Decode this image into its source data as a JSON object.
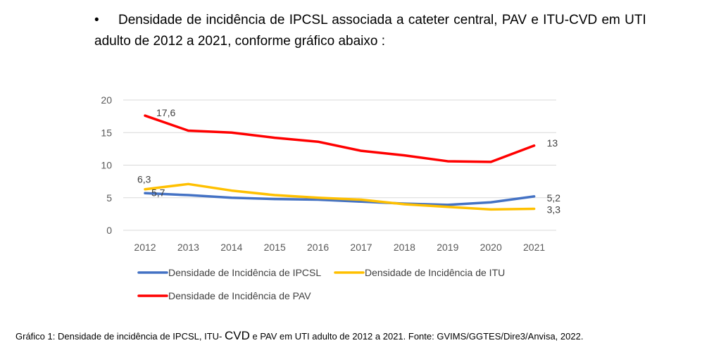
{
  "intro": {
    "line1": "Densidade de incidência de IPCSL associada a cateter central, PAV e ITU-CVD  em UTI",
    "line2": "adulto de 2012 a 2021, conforme gráfico abaixo :"
  },
  "chart_data": {
    "type": "line",
    "title": "",
    "xlabel": "",
    "ylabel": "",
    "categories": [
      "2012",
      "2013",
      "2014",
      "2015",
      "2016",
      "2017",
      "2018",
      "2019",
      "2020",
      "2021"
    ],
    "ylim": [
      0,
      20
    ],
    "yticks": [
      "0",
      "5",
      "10",
      "15",
      "20"
    ],
    "grid": true,
    "legend_position": "bottom",
    "series": [
      {
        "name": "Densidade de Incidência de IPCSL",
        "color": "#4472c4",
        "values": [
          5.7,
          5.4,
          5.0,
          4.8,
          4.7,
          4.4,
          4.1,
          3.9,
          4.3,
          5.2
        ],
        "labels": [
          {
            "index": 0,
            "text": "5,7"
          },
          {
            "index": 9,
            "text": "5,2"
          }
        ]
      },
      {
        "name": "Densidade de Incidência de ITU",
        "color": "#ffc000",
        "values": [
          6.3,
          7.1,
          6.1,
          5.4,
          5.0,
          4.7,
          4.0,
          3.6,
          3.2,
          3.3
        ],
        "labels": [
          {
            "index": 0,
            "text": "6,3"
          },
          {
            "index": 9,
            "text": "3,3"
          }
        ]
      },
      {
        "name": "Densidade de Incidência de PAV",
        "color": "#ff0000",
        "values": [
          17.6,
          15.3,
          15.0,
          14.2,
          13.6,
          12.2,
          11.5,
          10.6,
          10.5,
          13.0
        ],
        "labels": [
          {
            "index": 0,
            "text": "17,6"
          },
          {
            "index": 9,
            "text": "13"
          }
        ]
      }
    ]
  },
  "caption": {
    "part1": "Gráfico 1: Densidade de incidência de IPCSL, ITU- ",
    "part2": "CVD",
    "part3": " e PAV em UTI adulto de 2012 a 2021. Fonte: GVIMS/GGTES/Dire3/Anvisa, 2022."
  }
}
